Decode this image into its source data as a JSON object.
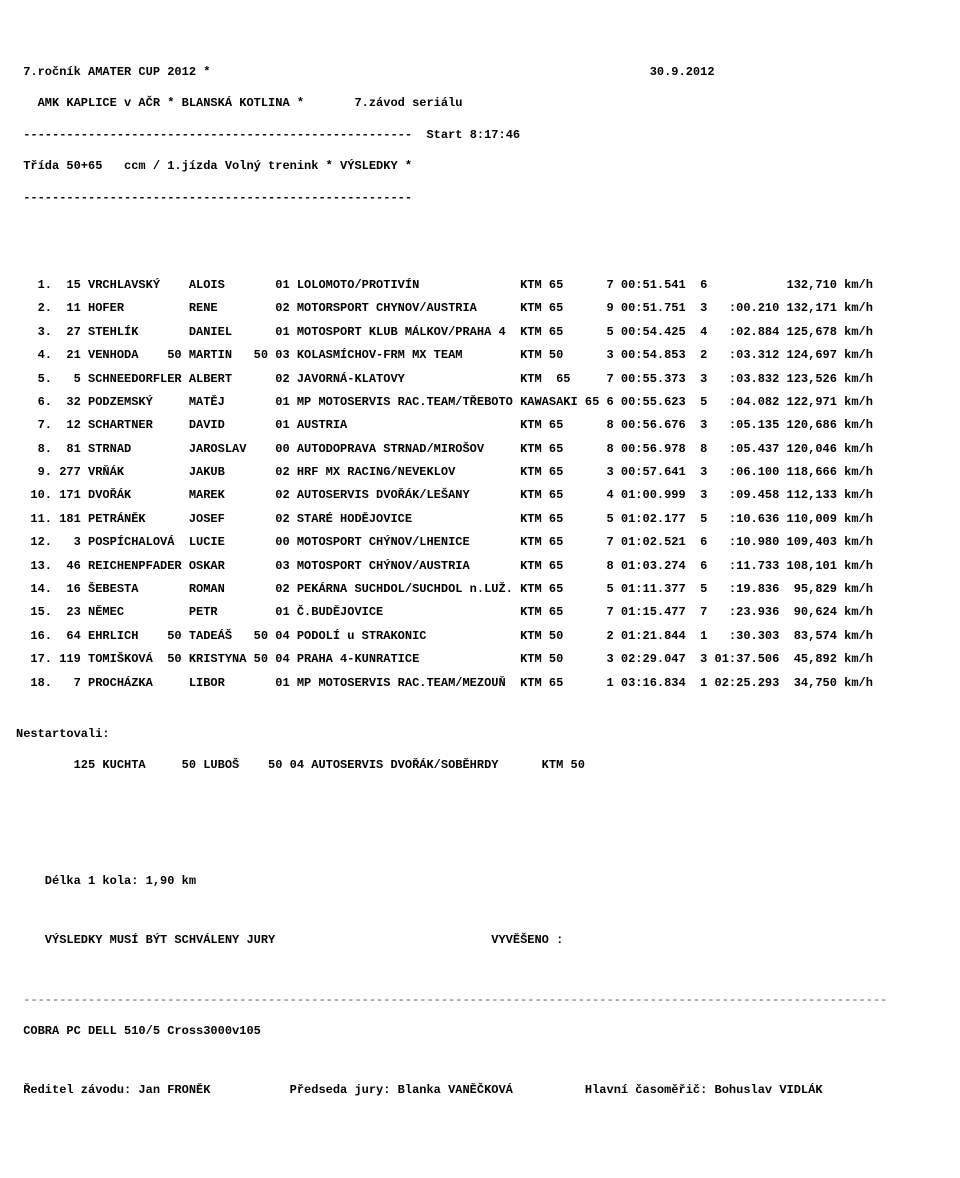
{
  "header": {
    "line1": " 7.ročník AMATER CUP 2012 *                                                             30.9.2012",
    "line2": "   AMK KAPLICE v AČR * BLANSKÁ KOTLINA *       7.závod seriálu",
    "dash": " ------------------------------------------------------",
    "start": "Start 8:17:46",
    "class_line": " Třída 50+65   ccm / 1.jízda Volný trenink * VÝSLEDKY *",
    "dash2": " ------------------------------------------------------"
  },
  "rows": [
    {
      "txt": "   1.  15 VRCHLAVSKÝ    ALOIS       01 LOLOMOTO/PROTIVÍN              KTM 65      7 00:51.541  6           132,710 km/h"
    },
    {
      "txt": "   2.  11 HOFER         RENE        02 MOTORSPORT CHYNOV/AUSTRIA      KTM 65      9 00:51.751  3   :00.210 132,171 km/h"
    },
    {
      "txt": "   3.  27 STEHLÍK       DANIEL      01 MOTOSPORT KLUB MÁLKOV/PRAHA 4  KTM 65      5 00:54.425  4   :02.884 125,678 km/h"
    },
    {
      "txt": "   4.  21 VENHODA    50 MARTIN   50 03 KOLASMÍCHOV-FRM MX TEAM        KTM 50      3 00:54.853  2   :03.312 124,697 km/h"
    },
    {
      "txt": "   5.   5 SCHNEEDORFLER ALBERT      02 JAVORNÁ-KLATOVY                KTM  65     7 00:55.373  3   :03.832 123,526 km/h"
    },
    {
      "txt": "   6.  32 PODZEMSKÝ     MATĚJ       01 MP MOTOSERVIS RAC.TEAM/TŘEBOTO KAWASAKI 65 6 00:55.623  5   :04.082 122,971 km/h"
    },
    {
      "txt": "   7.  12 SCHARTNER     DAVID       01 AUSTRIA                        KTM 65      8 00:56.676  3   :05.135 120,686 km/h"
    },
    {
      "txt": "   8.  81 STRNAD        JAROSLAV    00 AUTODOPRAVA STRNAD/MIROŠOV     KTM 65      8 00:56.978  8   :05.437 120,046 km/h"
    },
    {
      "txt": "   9. 277 VRŇÁK         JAKUB       02 HRF MX RACING/NEVEKLOV         KTM 65      3 00:57.641  3   :06.100 118,666 km/h"
    },
    {
      "txt": "  10. 171 DVOŘÁK        MAREK       02 AUTOSERVIS DVOŘÁK/LEŠANY       KTM 65      4 01:00.999  3   :09.458 112,133 km/h"
    },
    {
      "txt": "  11. 181 PETRÁNĚK      JOSEF       02 STARÉ HODĚJOVICE               KTM 65      5 01:02.177  5   :10.636 110,009 km/h"
    },
    {
      "txt": "  12.   3 POSPÍCHALOVÁ  LUCIE       00 MOTOSPORT CHÝNOV/LHENICE       KTM 65      7 01:02.521  6   :10.980 109,403 km/h"
    },
    {
      "txt": "  13.  46 REICHENPFADER OSKAR       03 MOTOSPORT CHÝNOV/AUSTRIA       KTM 65      8 01:03.274  6   :11.733 108,101 km/h"
    },
    {
      "txt": "  14.  16 ŠEBESTA       ROMAN       02 PEKÁRNA SUCHDOL/SUCHDOL n.LUŽ. KTM 65      5 01:11.377  5   :19.836  95,829 km/h"
    },
    {
      "txt": "  15.  23 NĚMEC         PETR        01 Č.BUDĚJOVICE                   KTM 65      7 01:15.477  7   :23.936  90,624 km/h"
    },
    {
      "txt": "  16.  64 EHRLICH    50 TADEÁŠ   50 04 PODOLÍ u STRAKONIC             KTM 50      2 01:21.844  1   :30.303  83,574 km/h"
    },
    {
      "txt": "  17. 119 TOMIŠKOVÁ  50 KRISTYNA 50 04 PRAHA 4-KUNRATICE              KTM 50      3 02:29.047  3 01:37.506  45,892 km/h"
    },
    {
      "txt": "  18.   7 PROCHÁZKA     LIBOR       01 MP MOTOSERVIS RAC.TEAM/MEZOUŇ  KTM 65      1 03:16.834  1 02:25.293  34,750 km/h"
    }
  ],
  "nonstart": {
    "label": "Nestartovali:",
    "entry": "        125 KUCHTA     50 LUBOŠ    50 04 AUTOSERVIS DVOŘÁK/SOBĚHRDY      KTM 50"
  },
  "footer": {
    "lap": "    Délka 1 kola: 1,90 km",
    "approve": "    VÝSLEDKY MUSÍ BÝT SCHVÁLENY JURY                              VYVĚŠENO :",
    "sep": " ------------------------------------------------------------------------------------------------------------------------",
    "sw": " COBRA PC DELL 510/5 Cross3000v105",
    "officials": " Ředitel závodu: Jan FRONĚK           Předseda jury: Blanka VANĚČKOVÁ          Hlavní časoměřič: Bohuslav VIDLÁK"
  }
}
